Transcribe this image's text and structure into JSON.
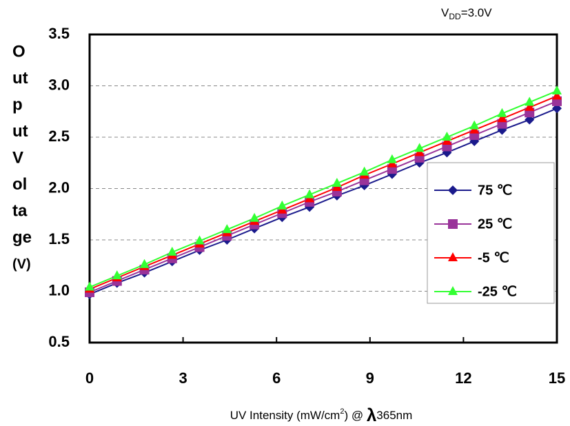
{
  "chart_data": {
    "type": "line",
    "annotation": {
      "main": "V",
      "sub": "DD",
      "rest": "=3.0V"
    },
    "y_label_lines": [
      "O",
      "ut",
      "p",
      "ut",
      "V",
      "ol",
      "ta",
      "ge",
      "(V)"
    ],
    "x_label": {
      "a": "UV Intensity (mW/cm",
      "sup": "2",
      "b": ") @ ",
      "lambda": "λ",
      "c": "365nm"
    },
    "x": [
      0,
      0.88,
      1.76,
      2.65,
      3.53,
      4.41,
      5.29,
      6.18,
      7.06,
      7.94,
      8.82,
      9.71,
      10.59,
      11.47,
      12.35,
      13.24,
      14.12,
      15
    ],
    "series": [
      {
        "name": "75 ℃",
        "color": "#1a1a8c",
        "marker": "diamond",
        "values": [
          0.97,
          1.08,
          1.18,
          1.29,
          1.4,
          1.5,
          1.61,
          1.72,
          1.82,
          1.93,
          2.03,
          2.14,
          2.25,
          2.35,
          2.46,
          2.57,
          2.67,
          2.78
        ]
      },
      {
        "name": "25 ℃",
        "color": "#993399",
        "marker": "square",
        "values": [
          0.99,
          1.1,
          1.21,
          1.32,
          1.43,
          1.54,
          1.65,
          1.76,
          1.87,
          1.97,
          2.08,
          2.19,
          2.3,
          2.41,
          2.52,
          2.63,
          2.74,
          2.85
        ]
      },
      {
        "name": "-5 ℃",
        "color": "#ff0000",
        "marker": "triangle",
        "values": [
          1.02,
          1.13,
          1.24,
          1.35,
          1.46,
          1.57,
          1.68,
          1.79,
          1.9,
          2.01,
          2.13,
          2.24,
          2.35,
          2.46,
          2.57,
          2.68,
          2.79,
          2.9
        ]
      },
      {
        "name": "-25 ℃",
        "color": "#33ff33",
        "marker": "triangle",
        "values": [
          1.04,
          1.15,
          1.26,
          1.38,
          1.49,
          1.6,
          1.71,
          1.83,
          1.94,
          2.05,
          2.16,
          2.28,
          2.39,
          2.5,
          2.61,
          2.73,
          2.84,
          2.95
        ]
      }
    ],
    "xlim": [
      0,
      15
    ],
    "xticks": [
      0,
      3,
      6,
      9,
      12,
      15
    ],
    "ylim": [
      0.5,
      3.5
    ],
    "yticks": [
      0.5,
      {
        "value": 1.0,
        "label": "1.0"
      },
      1.5,
      {
        "value": 2.0,
        "label": "2.0"
      },
      2.5,
      {
        "value": 3.0,
        "label": "3.0"
      },
      3.5
    ],
    "grid": true,
    "legend": "right"
  }
}
